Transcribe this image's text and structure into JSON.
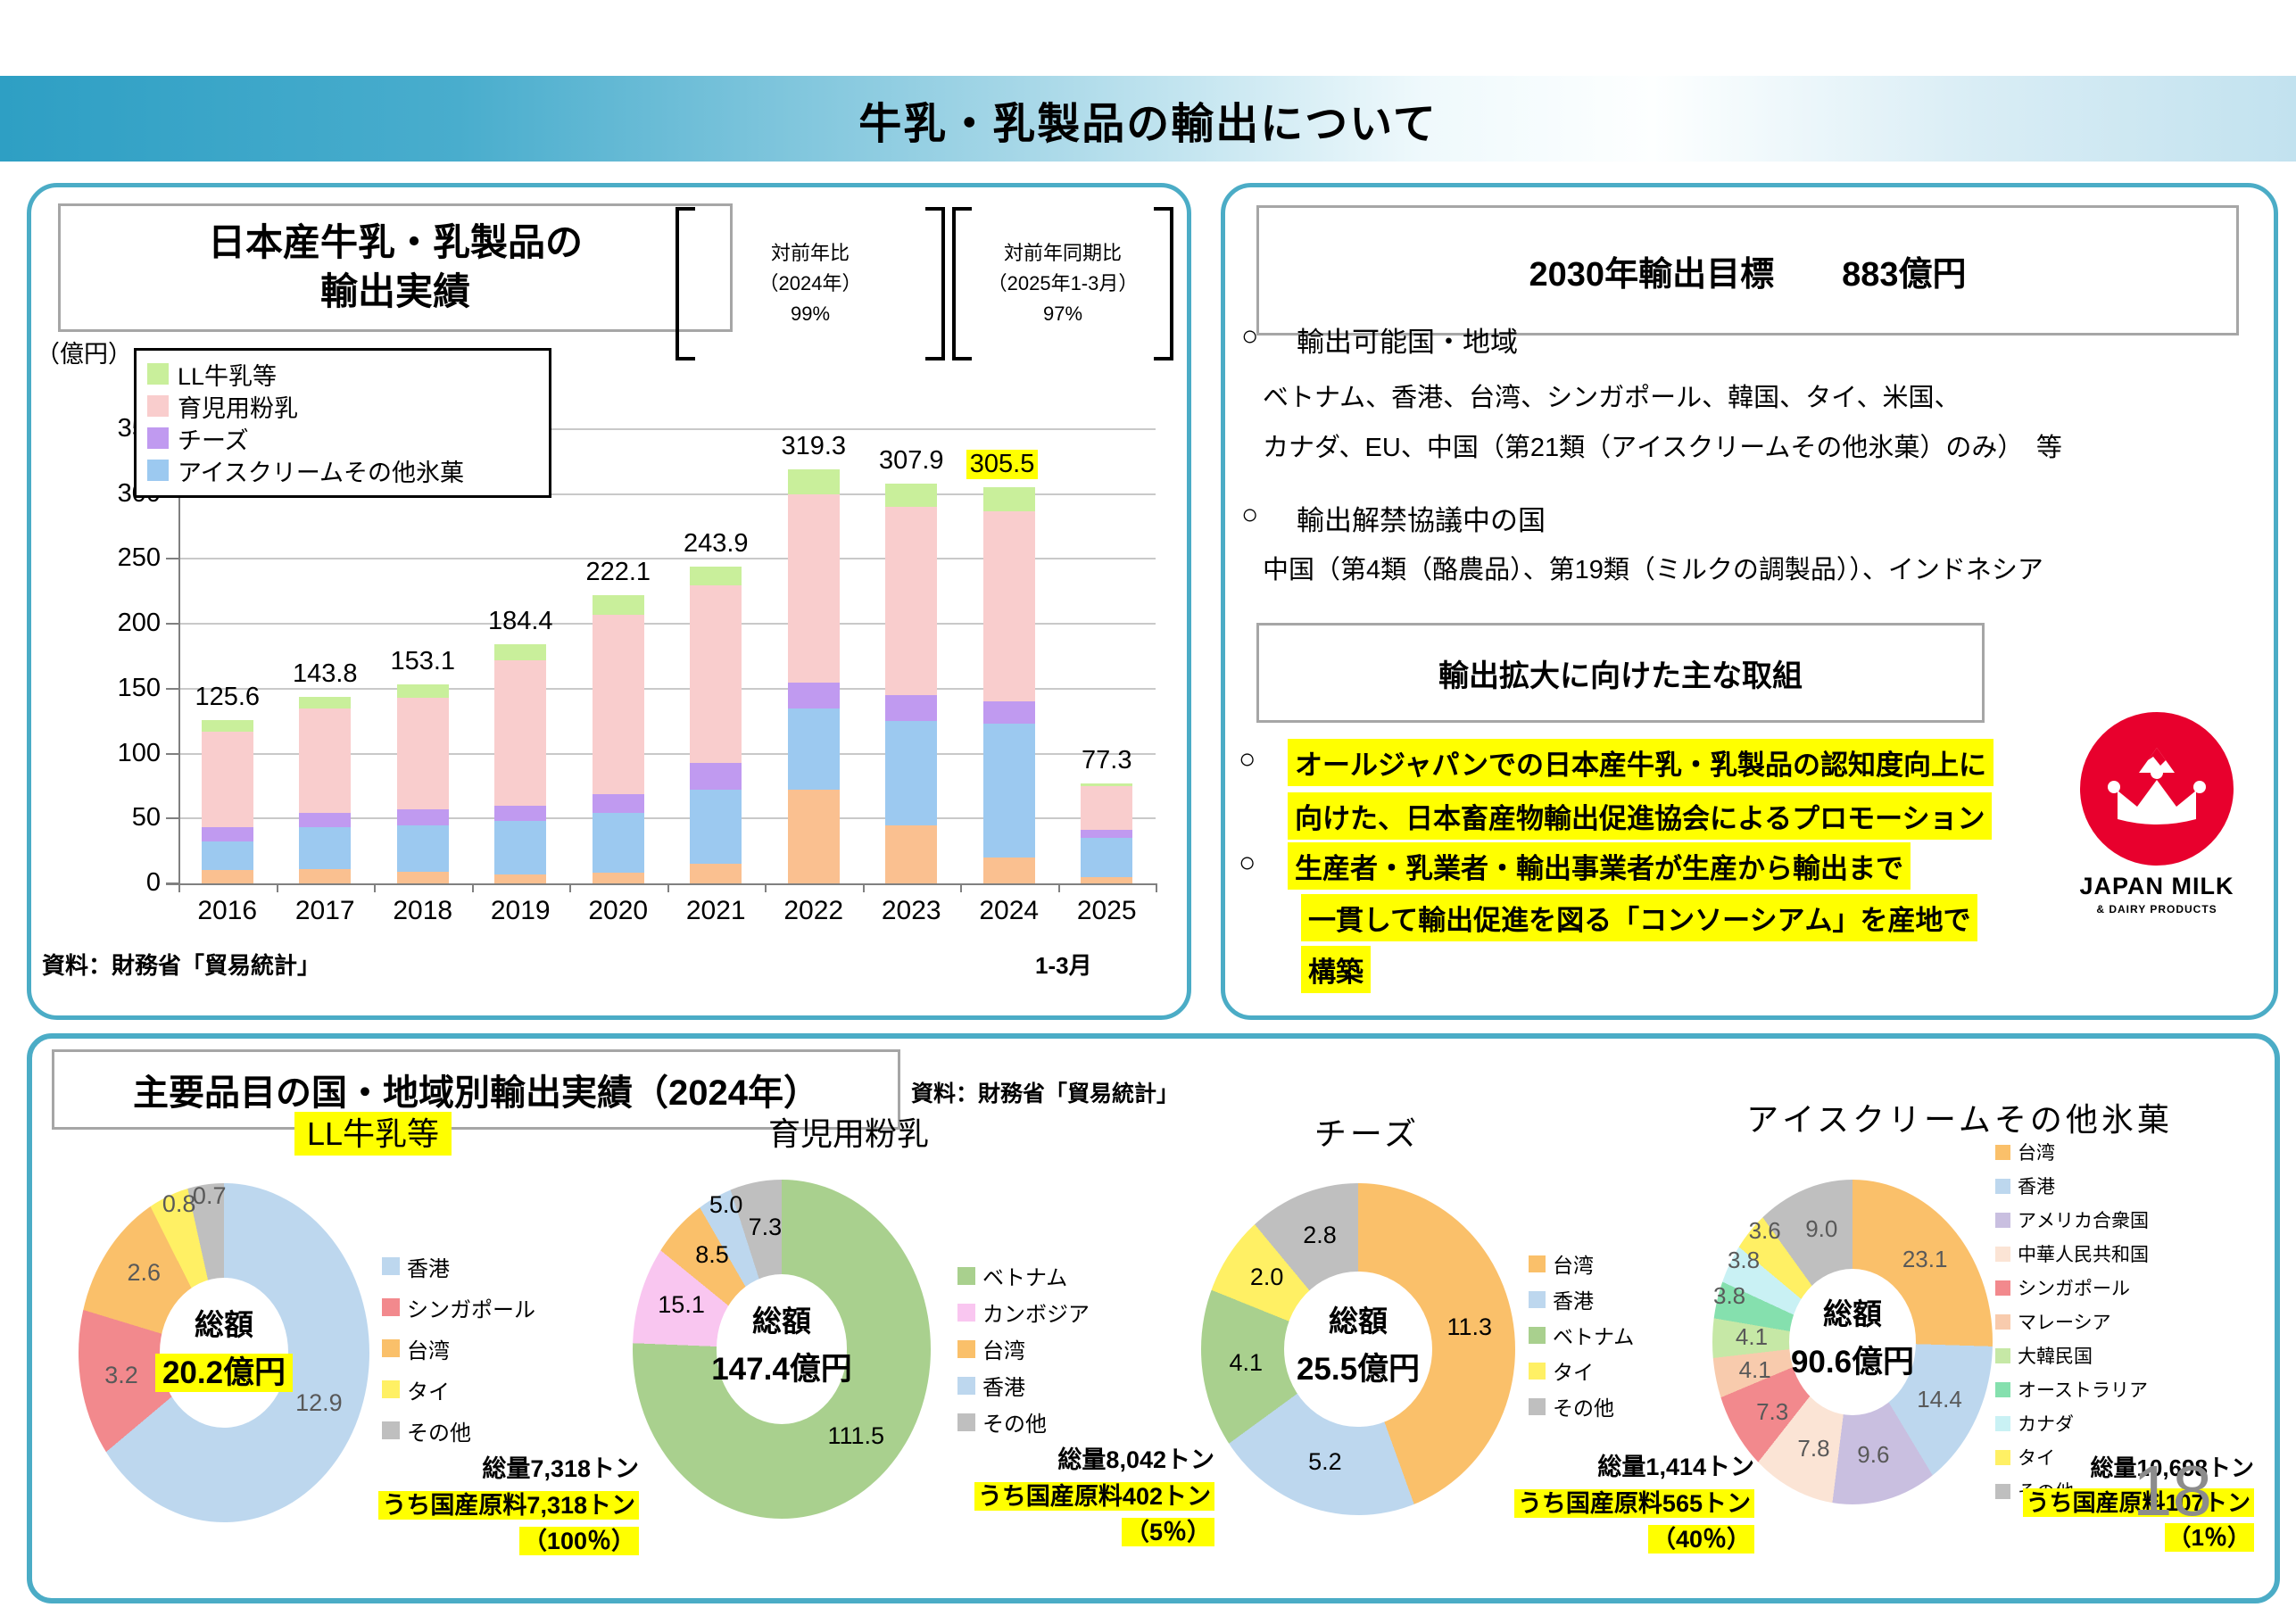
{
  "page": {
    "number": "18"
  },
  "colors": {
    "accent": "#4BACC6",
    "highlight": "#FFFF00"
  },
  "header": {
    "title": "牛乳・乳製品の輸出について"
  },
  "left_panel": {
    "title_line1": "日本産牛乳・乳製品の",
    "title_line2": "輸出実績",
    "bracket1": {
      "line1": "対前年比",
      "line2": "（2024年）",
      "line3": "99%"
    },
    "bracket2": {
      "line1": "対前年同期比",
      "line2": "（2025年1-3月）",
      "line3": "97%"
    },
    "unit_label": "（億円）",
    "source": "資料：財務省「貿易統計」",
    "x_sublabel": "1-3月"
  },
  "right_panel": {
    "target_box": "2030年輸出目標　　883億円",
    "bullet_mark": "○",
    "bullet1_heading": "輸出可能国・地域",
    "bullet1_line1": "ベトナム、香港、台湾、シンガポール、韓国、タイ、米国、",
    "bullet1_line2": "カナダ、EU、中国（第21類（アイスクリームその他氷菓）のみ）　等",
    "bullet2_heading": "輸出解禁協議中の国",
    "bullet2_line1": "中国（第4類（酪農品）、第19類（ミルクの調製品））、インドネシア",
    "initiatives_box": "輸出拡大に向けた主な取組",
    "initiative1_line1": "オールジャパンでの日本産牛乳・乳製品の認知度向上に",
    "initiative1_line2": "向けた、日本畜産物輸出促進協会によるプロモーション",
    "initiative2_line1": "生産者・乳業者・輸出事業者が生産から輸出まで",
    "initiative2_line2": "一貫して輸出促進を図る「コンソーシアム」を産地で",
    "initiative2_line3": "構築",
    "logo": {
      "line1": "JAPAN MILK",
      "line2": "& DAIRY PRODUCTS"
    }
  },
  "bottom_panel": {
    "title": "主要品目の国・地域別輸出実績（2024年）",
    "source": "資料：財務省「貿易統計」"
  },
  "chart_data": [
    {
      "type": "bar",
      "title": "日本産牛乳・乳製品の輸出実績",
      "ylabel": "（億円）",
      "ylim": [
        0,
        350
      ],
      "ytick_step": 50,
      "grid": true,
      "categories": [
        "2016",
        "2017",
        "2018",
        "2019",
        "2020",
        "2021",
        "2022",
        "2023",
        "2024",
        "2025"
      ],
      "totals": [
        125.6,
        143.8,
        153.1,
        184.4,
        222.1,
        243.9,
        319.3,
        307.9,
        305.5,
        77.3
      ],
      "highlighted_total_index": 8,
      "legend_position": "top-left",
      "legend": [
        {
          "label": "LL牛乳等",
          "color": "#C9EF9B"
        },
        {
          "label": "育児用粉乳",
          "color": "#F9CDCD"
        },
        {
          "label": "チーズ",
          "color": "#C09AF0"
        },
        {
          "label": "アイスクリームその他氷菓",
          "color": "#9CC9F0"
        }
      ],
      "series": [
        {
          "legend_label": null,
          "color": "#FAC090",
          "values": [
            10,
            11,
            9,
            7,
            8,
            15,
            72,
            45,
            20,
            5
          ]
        },
        {
          "legend_label": "アイスクリームその他氷菓",
          "color": "#9CC9F0",
          "values": [
            22,
            32,
            36,
            41,
            46,
            57,
            63,
            80,
            103,
            30
          ]
        },
        {
          "legend_label": "チーズ",
          "color": "#C09AF0",
          "values": [
            11,
            11,
            12,
            12,
            15,
            21,
            20,
            20,
            17,
            6
          ]
        },
        {
          "legend_label": "育児用粉乳",
          "color": "#F9CDCD",
          "values": [
            74,
            81,
            86,
            112,
            138,
            137,
            145,
            145,
            147,
            34
          ]
        },
        {
          "legend_label": "LL牛乳等",
          "color": "#C9EF9B",
          "values": [
            8.6,
            8.8,
            10.1,
            12.4,
            15.1,
            13.9,
            19.3,
            17.9,
            18.5,
            2.3
          ]
        }
      ],
      "source": "資料：財務省「貿易統計」"
    },
    {
      "type": "pie",
      "title": "LL牛乳等",
      "title_highlighted": true,
      "center_label": "総額",
      "center_value": "20.2億円",
      "center_value_highlighted": true,
      "slices": [
        {
          "label": "香港",
          "value": 12.9,
          "color": "#BDD7EE"
        },
        {
          "label": "シンガポール",
          "value": 3.2,
          "color": "#F2898D"
        },
        {
          "label": "台湾",
          "value": 2.6,
          "color": "#FAC06A"
        },
        {
          "label": "タイ",
          "value": 0.8,
          "color": "#FFF064"
        },
        {
          "label": "その他",
          "value": 0.7,
          "color": "#BFBFBF"
        }
      ],
      "total_volume": "総量7,318トン",
      "domestic_line": "うち国産原料7,318トン",
      "domestic_pct": "（100％）"
    },
    {
      "type": "pie",
      "title": "育児用粉乳",
      "title_highlighted": false,
      "center_label": "総額",
      "center_value": "147.4億円",
      "center_value_highlighted": false,
      "slices": [
        {
          "label": "ベトナム",
          "value": 111.5,
          "color": "#A9D08E"
        },
        {
          "label": "カンボジア",
          "value": 15.1,
          "color": "#F9C6F0"
        },
        {
          "label": "台湾",
          "value": 8.5,
          "color": "#FAC06A"
        },
        {
          "label": "香港",
          "value": 5.0,
          "color": "#BDD7EE"
        },
        {
          "label": "その他",
          "value": 7.3,
          "color": "#BFBFBF"
        }
      ],
      "total_volume": "総量8,042トン",
      "domestic_line": "うち国産原料402トン",
      "domestic_pct": "（5％）"
    },
    {
      "type": "pie",
      "title": "チーズ",
      "title_highlighted": false,
      "center_label": "総額",
      "center_value": "25.5億円",
      "center_value_highlighted": false,
      "slices": [
        {
          "label": "台湾",
          "value": 11.3,
          "color": "#FAC06A"
        },
        {
          "label": "香港",
          "value": 5.2,
          "color": "#BDD7EE"
        },
        {
          "label": "ベトナム",
          "value": 4.1,
          "color": "#A9D08E"
        },
        {
          "label": "タイ",
          "value": 2.0,
          "color": "#FFF064"
        },
        {
          "label": "その他",
          "value": 2.8,
          "color": "#BFBFBF"
        }
      ],
      "total_volume": "総量1,414トン",
      "domestic_line": "うち国産原料565トン",
      "domestic_pct": "（40％）"
    },
    {
      "type": "pie",
      "title": "アイスクリームその他氷菓",
      "title_highlighted": false,
      "center_label": "総額",
      "center_value": "90.6億円",
      "center_value_highlighted": false,
      "slices": [
        {
          "label": "台湾",
          "value": 23.1,
          "color": "#FAC06A"
        },
        {
          "label": "香港",
          "value": 14.4,
          "color": "#BDD7EE"
        },
        {
          "label": "アメリカ合衆国",
          "value": 9.6,
          "color": "#C9BFE0"
        },
        {
          "label": "中華人民共和国",
          "value": 7.8,
          "color": "#FBE4D5"
        },
        {
          "label": "シンガポール",
          "value": 7.3,
          "color": "#F2898D"
        },
        {
          "label": "マレーシア",
          "value": 4.1,
          "color": "#F8CBAD"
        },
        {
          "label": "大韓民国",
          "value": 4.1,
          "color": "#C6E8A6"
        },
        {
          "label": "オーストラリア",
          "value": 3.8,
          "color": "#85E0AE"
        },
        {
          "label": "カナダ",
          "value": 3.8,
          "color": "#C9F1F4"
        },
        {
          "label": "タイ",
          "value": 3.6,
          "color": "#FFF064"
        },
        {
          "label": "その他",
          "value": 9.0,
          "color": "#BFBFBF"
        }
      ],
      "total_volume": "総量10,698トン",
      "domestic_line": "うち国産原料107トン",
      "domestic_pct": "（1％）"
    }
  ]
}
